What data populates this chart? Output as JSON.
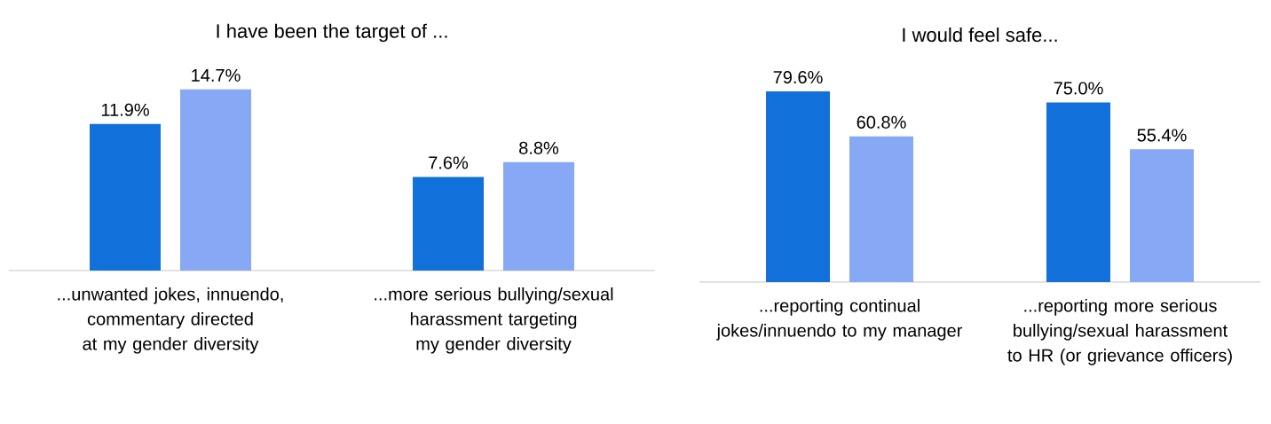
{
  "chart_data": [
    {
      "type": "bar",
      "title": "I have been the target of ...",
      "categories": [
        "...unwanted jokes, innuendo, commentary directed at my gender diversity",
        "...more serious bullying/sexual harassment targeting my gender diversity"
      ],
      "series": [
        {
          "color": "#1170d9",
          "values": [
            11.9,
            7.6
          ],
          "value_labels": [
            "11.9%",
            "7.6%"
          ]
        },
        {
          "color": "#86a8f5",
          "values": [
            14.7,
            8.8
          ],
          "value_labels": [
            "14.7%",
            "8.8%"
          ]
        }
      ]
    },
    {
      "type": "bar",
      "title": "I would feel safe...",
      "categories": [
        "...reporting continual jokes/innuendo to my manager",
        "...reporting more serious bullying/sexual harassment to HR (or grievance officers)"
      ],
      "series": [
        {
          "color": "#1170d9",
          "values": [
            79.6,
            75.0
          ],
          "value_labels": [
            "79.6%",
            "75.0%"
          ]
        },
        {
          "color": "#86a8f5",
          "values": [
            60.8,
            55.4
          ],
          "value_labels": [
            "60.8%",
            "55.4%"
          ]
        }
      ]
    }
  ]
}
